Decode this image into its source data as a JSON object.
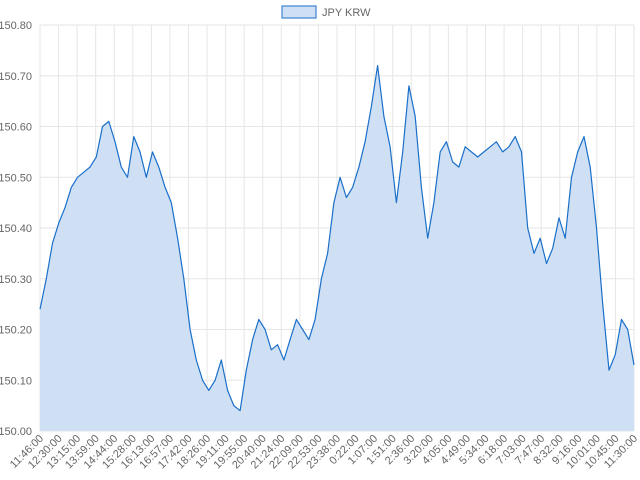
{
  "chart_data": {
    "type": "area",
    "title": "",
    "xlabel": "",
    "ylabel": "",
    "ylim": [
      150.0,
      150.8
    ],
    "y_ticks": [
      "150.00",
      "150.10",
      "150.20",
      "150.30",
      "150.40",
      "150.50",
      "150.60",
      "150.70",
      "150.80"
    ],
    "x_tick_labels": [
      "11:46:00",
      "12:30:00",
      "13:15:00",
      "13:59:00",
      "14:44:00",
      "15:28:00",
      "16:13:00",
      "16:57:00",
      "17:42:00",
      "18:26:00",
      "19:11:00",
      "19:55:00",
      "20:40:00",
      "21:24:00",
      "22:09:00",
      "22:53:00",
      "23:38:00",
      "0:22:00",
      "1:07:00",
      "1:51:00",
      "2:36:00",
      "3:20:00",
      "4:05:00",
      "4:49:00",
      "5:34:00",
      "6:18:00",
      "7:03:00",
      "7:47:00",
      "8:32:00",
      "9:16:00",
      "10:01:00",
      "10:45:00",
      "11:30:00"
    ],
    "grid": true,
    "legend": "top-center",
    "series": [
      {
        "name": "JPY KRW",
        "color": "#1a6fc9",
        "fill": "#cfe0f4",
        "values": [
          150.24,
          150.3,
          150.37,
          150.41,
          150.44,
          150.48,
          150.5,
          150.51,
          150.52,
          150.54,
          150.6,
          150.61,
          150.57,
          150.52,
          150.5,
          150.58,
          150.55,
          150.5,
          150.55,
          150.52,
          150.48,
          150.45,
          150.38,
          150.3,
          150.2,
          150.14,
          150.1,
          150.08,
          150.1,
          150.14,
          150.08,
          150.05,
          150.04,
          150.12,
          150.18,
          150.22,
          150.2,
          150.16,
          150.17,
          150.14,
          150.18,
          150.22,
          150.2,
          150.18,
          150.22,
          150.3,
          150.35,
          150.45,
          150.5,
          150.46,
          150.48,
          150.52,
          150.57,
          150.64,
          150.72,
          150.62,
          150.56,
          150.45,
          150.55,
          150.68,
          150.62,
          150.48,
          150.38,
          150.45,
          150.55,
          150.57,
          150.53,
          150.52,
          150.56,
          150.55,
          150.54,
          150.55,
          150.56,
          150.57,
          150.55,
          150.56,
          150.58,
          150.55,
          150.4,
          150.35,
          150.38,
          150.33,
          150.36,
          150.42,
          150.38,
          150.5,
          150.55,
          150.58,
          150.52,
          150.4,
          150.25,
          150.12,
          150.15,
          150.22,
          150.2,
          150.13
        ]
      }
    ]
  }
}
